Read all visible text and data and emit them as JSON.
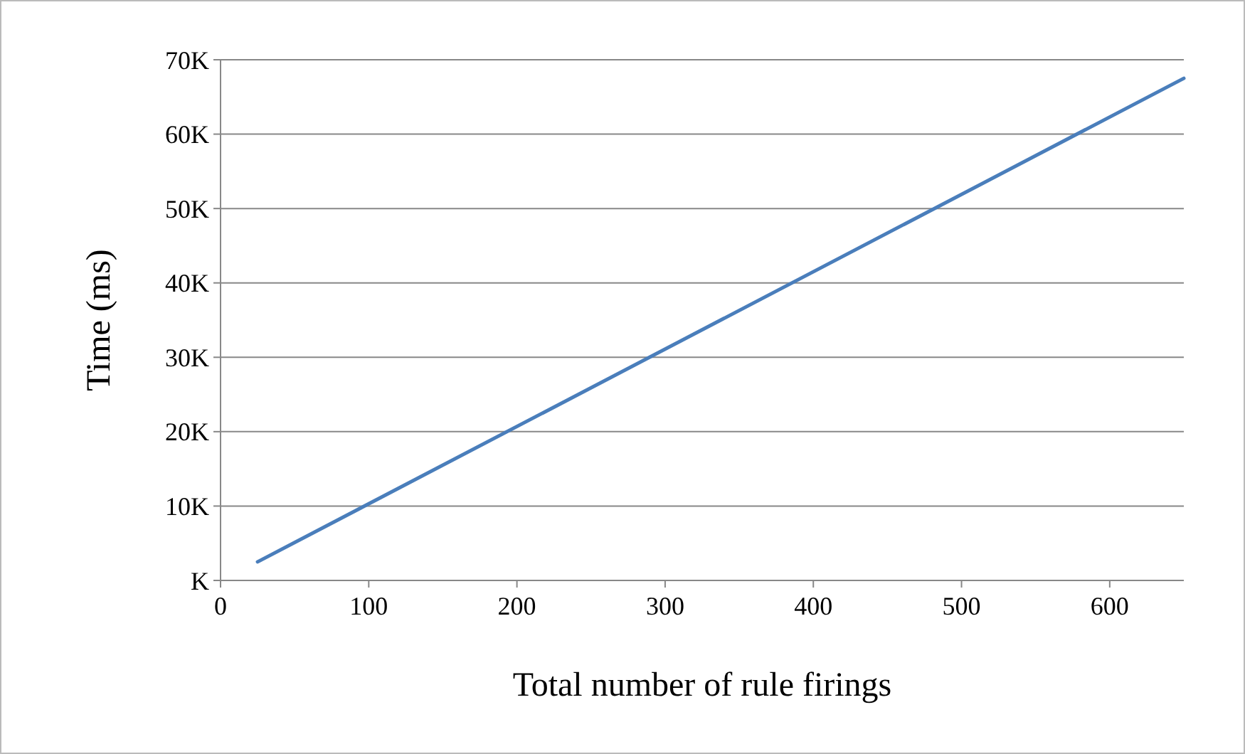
{
  "chart_data": {
    "type": "line",
    "xlabel": "Total number of rule firings",
    "ylabel": "Time (ms)",
    "x": [
      25,
      650
    ],
    "series": [
      {
        "color": "#4a7ebb",
        "values": [
          2500,
          67500
        ]
      }
    ],
    "xlim": [
      0,
      650
    ],
    "xticks": [
      0,
      100,
      200,
      300,
      400,
      500,
      600
    ],
    "ylim": [
      0,
      70000
    ],
    "yticks": [
      {
        "value": 0,
        "label": "K"
      },
      {
        "value": 10000,
        "label": "10K"
      },
      {
        "value": 20000,
        "label": "20K"
      },
      {
        "value": 30000,
        "label": "30K"
      },
      {
        "value": 40000,
        "label": "40K"
      },
      {
        "value": 50000,
        "label": "50K"
      },
      {
        "value": 60000,
        "label": "60K"
      },
      {
        "value": 70000,
        "label": "70K"
      }
    ],
    "grid": "y",
    "marker": "none",
    "line_style": "solid"
  }
}
